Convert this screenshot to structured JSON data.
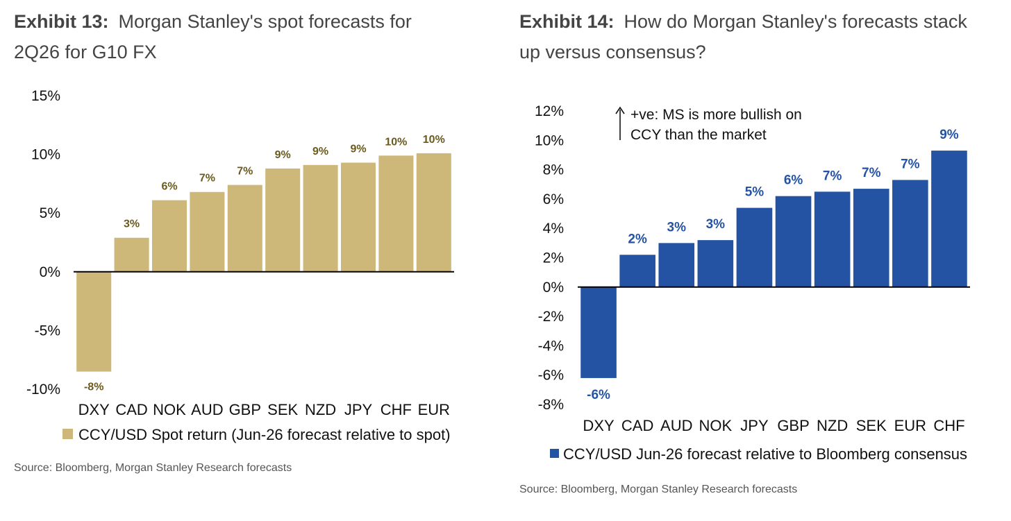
{
  "exhibit13": {
    "number": "Exhibit 13:",
    "title": "Morgan Stanley's spot forecasts for 2Q26 for G10 FX",
    "legend": "CCY/USD Spot return (Jun-26 forecast relative to spot)",
    "source": "Source: Bloomberg, Morgan Stanley Research forecasts",
    "bar_color": "#cdb87a",
    "label_color": "#6b5a1e"
  },
  "exhibit14": {
    "number": "Exhibit 14:",
    "title": "How do Morgan Stanley's forecasts stack up versus consensus?",
    "legend": "CCY/USD Jun-26 forecast relative to Bloomberg consensus",
    "annotation_line1": "+ve: MS is more bullish on",
    "annotation_line2": "CCY than the market",
    "source": "Source: Bloomberg, Morgan Stanley Research forecasts",
    "bar_color": "#2453a3",
    "label_color": "#2453a3"
  },
  "chart_data": [
    {
      "type": "bar",
      "title": "Morgan Stanley's spot forecasts for 2Q26 for G10 FX",
      "categories": [
        "DXY",
        "CAD",
        "NOK",
        "AUD",
        "GBP",
        "SEK",
        "NZD",
        "JPY",
        "CHF",
        "EUR"
      ],
      "values": [
        -8.5,
        2.9,
        6.1,
        6.8,
        7.4,
        8.8,
        9.1,
        9.3,
        9.9,
        10.1
      ],
      "data_labels": [
        "-8%",
        "3%",
        "6%",
        "7%",
        "7%",
        "9%",
        "9%",
        "9%",
        "10%",
        "10%"
      ],
      "ylim": [
        -10,
        15
      ],
      "yticks": [
        15,
        10,
        5,
        0,
        -5,
        -10
      ],
      "ytick_labels": [
        "15%",
        "10%",
        "5%",
        "0%",
        "-5%",
        "-10%"
      ],
      "series": [
        {
          "name": "CCY/USD Spot return (Jun-26 forecast relative to spot)"
        }
      ],
      "legend_position": "bottom",
      "grid": false
    },
    {
      "type": "bar",
      "title": "How do Morgan Stanley's forecasts stack up versus consensus?",
      "categories": [
        "DXY",
        "CAD",
        "AUD",
        "NOK",
        "JPY",
        "GBP",
        "NZD",
        "SEK",
        "EUR",
        "CHF"
      ],
      "values": [
        -6.2,
        2.2,
        3.0,
        3.2,
        5.4,
        6.2,
        6.5,
        6.7,
        7.3,
        9.3
      ],
      "data_labels": [
        "-6%",
        "2%",
        "3%",
        "3%",
        "5%",
        "6%",
        "7%",
        "7%",
        "7%",
        "9%"
      ],
      "ylim": [
        -8,
        12
      ],
      "yticks": [
        12,
        10,
        8,
        6,
        4,
        2,
        0,
        -2,
        -4,
        -6,
        -8
      ],
      "ytick_labels": [
        "12%",
        "10%",
        "8%",
        "6%",
        "4%",
        "2%",
        "0%",
        "-2%",
        "-4%",
        "-6%",
        "-8%"
      ],
      "series": [
        {
          "name": "CCY/USD Jun-26 forecast relative to Bloomberg consensus"
        }
      ],
      "legend_position": "bottom",
      "grid": false
    }
  ]
}
